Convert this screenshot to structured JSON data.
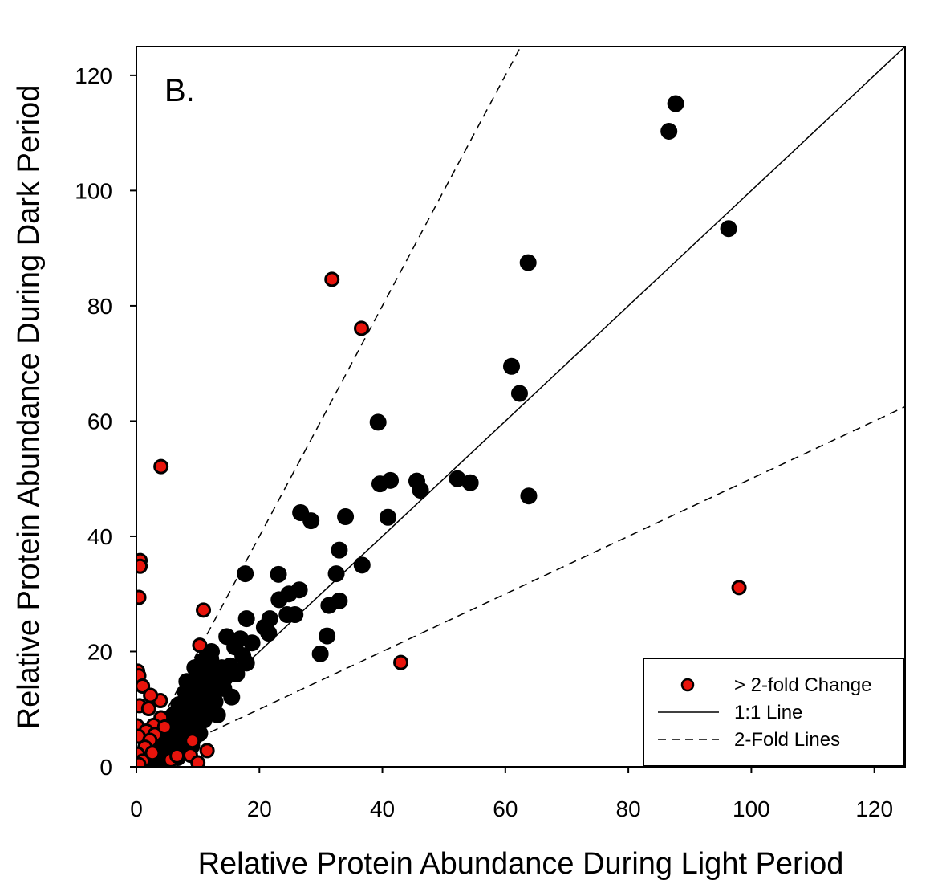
{
  "chart_data": {
    "type": "scatter",
    "panel_label": "B.",
    "xlabel": "Relative Protein Abundance During Light Period",
    "ylabel": "Relative Protein Abundance During Dark Period",
    "xlim": [
      0,
      125
    ],
    "ylim": [
      0,
      125
    ],
    "xticks": [
      0,
      20,
      40,
      60,
      80,
      100,
      120
    ],
    "yticks": [
      0,
      20,
      40,
      60,
      80,
      100,
      120
    ],
    "grid": false,
    "legend_position": "bottom-right",
    "colors": {
      "black_points": "#000000",
      "red_points": "#e8140c",
      "axes": "#000000"
    },
    "legend": {
      "points_label": "> 2-fold Change",
      "one_to_one_label": "1:1 Line",
      "two_fold_label": "2-Fold Lines"
    },
    "lines": [
      {
        "id": "one-to-one",
        "style": "solid",
        "slope": 1
      },
      {
        "id": "two-fold-upper",
        "style": "dashed",
        "slope": 2
      },
      {
        "id": "two-fold-lower",
        "style": "dashed",
        "slope": 0.5
      }
    ],
    "series": [
      {
        "id": "all-proteins",
        "color": "#000000",
        "points": [
          [
            87.7,
            115.1
          ],
          [
            86.6,
            110.3
          ],
          [
            96.3,
            93.4
          ],
          [
            63.7,
            87.5
          ],
          [
            61.0,
            69.5
          ],
          [
            62.3,
            64.8
          ],
          [
            39.3,
            59.8
          ],
          [
            39.6,
            49.1
          ],
          [
            41.3,
            49.7
          ],
          [
            45.6,
            49.6
          ],
          [
            46.2,
            48.0
          ],
          [
            52.2,
            50.0
          ],
          [
            54.3,
            49.3
          ],
          [
            40.9,
            43.3
          ],
          [
            63.8,
            47.0
          ],
          [
            26.7,
            44.1
          ],
          [
            28.4,
            42.7
          ],
          [
            34.0,
            43.4
          ],
          [
            33.0,
            37.6
          ],
          [
            36.7,
            35.0
          ],
          [
            32.5,
            33.5
          ],
          [
            23.1,
            33.4
          ],
          [
            17.7,
            33.5
          ],
          [
            26.5,
            30.7
          ],
          [
            24.8,
            30.0
          ],
          [
            23.2,
            29.0
          ],
          [
            33.0,
            28.8
          ],
          [
            31.3,
            28.0
          ],
          [
            24.5,
            26.4
          ],
          [
            25.8,
            26.4
          ],
          [
            21.7,
            25.7
          ],
          [
            17.9,
            25.7
          ],
          [
            20.8,
            24.2
          ],
          [
            21.5,
            23.2
          ],
          [
            14.7,
            22.6
          ],
          [
            16.9,
            22.2
          ],
          [
            16.0,
            20.8
          ],
          [
            18.8,
            21.5
          ],
          [
            17.3,
            19.3
          ],
          [
            31.0,
            22.7
          ],
          [
            29.9,
            19.6
          ],
          [
            15.5,
            12.1
          ],
          [
            17.9,
            18.0
          ],
          [
            13.9,
            17.2
          ],
          [
            12.1,
            18.7
          ],
          [
            11.5,
            19.3
          ],
          [
            12.4,
            16.5
          ],
          [
            13.2,
            14.4
          ],
          [
            11.0,
            15.6
          ],
          [
            10.2,
            13.9
          ],
          [
            9.6,
            15.2
          ],
          [
            8.2,
            14.8
          ],
          [
            9.5,
            17.2
          ],
          [
            10.5,
            17.8
          ],
          [
            11.3,
            13.1
          ],
          [
            12.5,
            12.3
          ],
          [
            14.2,
            13.6
          ],
          [
            12.8,
            11.3
          ],
          [
            11.0,
            11.0
          ],
          [
            10.2,
            11.8
          ],
          [
            9.5,
            12.6
          ],
          [
            8.7,
            12.1
          ],
          [
            8.0,
            11.0
          ],
          [
            7.3,
            10.4
          ],
          [
            9.3,
            10.0
          ],
          [
            10.4,
            9.3
          ],
          [
            11.6,
            9.5
          ],
          [
            12.5,
            10.0
          ],
          [
            13.2,
            9.0
          ],
          [
            9.6,
            8.3
          ],
          [
            8.6,
            8.6
          ],
          [
            7.6,
            9.0
          ],
          [
            6.8,
            8.1
          ],
          [
            7.7,
            7.5
          ],
          [
            8.8,
            7.0
          ],
          [
            10.0,
            7.6
          ],
          [
            11.0,
            8.1
          ],
          [
            9.4,
            6.5
          ],
          [
            7.9,
            6.2
          ],
          [
            6.8,
            6.7
          ],
          [
            6.0,
            7.3
          ],
          [
            5.3,
            6.4
          ],
          [
            6.3,
            5.7
          ],
          [
            7.3,
            5.2
          ],
          [
            8.4,
            5.3
          ],
          [
            9.4,
            5.0
          ],
          [
            10.3,
            5.8
          ],
          [
            8.6,
            4.4
          ],
          [
            7.2,
            4.3
          ],
          [
            5.8,
            4.7
          ],
          [
            5.0,
            5.6
          ],
          [
            4.4,
            4.9
          ],
          [
            5.4,
            3.9
          ],
          [
            6.5,
            3.6
          ],
          [
            7.9,
            3.4
          ],
          [
            9.0,
            3.6
          ],
          [
            4.0,
            3.9
          ],
          [
            4.7,
            3.0
          ],
          [
            5.9,
            2.8
          ],
          [
            7.1,
            2.5
          ],
          [
            3.5,
            3.0
          ],
          [
            3.1,
            2.3
          ],
          [
            4.2,
            2.0
          ],
          [
            5.4,
            1.9
          ],
          [
            6.7,
            1.6
          ],
          [
            2.6,
            1.8
          ],
          [
            2.0,
            2.4
          ],
          [
            1.9,
            1.3
          ],
          [
            3.0,
            1.2
          ],
          [
            4.3,
            1.1
          ],
          [
            1.3,
            1.8
          ],
          [
            1.1,
            0.9
          ],
          [
            2.2,
            0.7
          ],
          [
            3.6,
            0.6
          ],
          [
            0.8,
            1.3
          ],
          [
            0.5,
            0.5
          ],
          [
            1.5,
            0.3
          ],
          [
            0.3,
            0.8
          ],
          [
            0.6,
            2.1
          ],
          [
            2.4,
            3.3
          ],
          [
            1.6,
            2.9
          ],
          [
            3.8,
            5.5
          ],
          [
            2.8,
            4.3
          ],
          [
            4.9,
            7.0
          ],
          [
            6.0,
            9.0
          ],
          [
            6.9,
            10.8
          ],
          [
            8.0,
            12.9
          ],
          [
            8.5,
            14.0
          ],
          [
            11.9,
            14.9
          ],
          [
            13.0,
            15.8
          ],
          [
            15.3,
            17.5
          ],
          [
            16.3,
            16.1
          ],
          [
            14.4,
            15.4
          ],
          [
            12.2,
            20.0
          ],
          [
            10.8,
            18.4
          ]
        ]
      },
      {
        "id": "two-fold-change",
        "name": "> 2-fold Change",
        "color": "#e8140c",
        "points": [
          [
            31.8,
            84.6
          ],
          [
            36.6,
            76.1
          ],
          [
            4.0,
            52.1
          ],
          [
            0.6,
            35.8
          ],
          [
            0.6,
            34.8
          ],
          [
            0.4,
            29.4
          ],
          [
            10.9,
            27.2
          ],
          [
            10.3,
            21.1
          ],
          [
            43.0,
            18.1
          ],
          [
            98.0,
            31.1
          ],
          [
            0.2,
            16.6
          ],
          [
            0.4,
            15.8
          ],
          [
            1.0,
            14.0
          ],
          [
            3.9,
            11.5
          ],
          [
            2.3,
            12.4
          ],
          [
            0.5,
            10.6
          ],
          [
            2.0,
            10.1
          ],
          [
            4.0,
            8.5
          ],
          [
            2.8,
            7.2
          ],
          [
            0.1,
            7.1
          ],
          [
            1.6,
            6.2
          ],
          [
            3.0,
            5.6
          ],
          [
            0.3,
            5.3
          ],
          [
            2.2,
            4.6
          ],
          [
            1.4,
            3.4
          ],
          [
            0.2,
            2.2
          ],
          [
            5.6,
            1.2
          ],
          [
            6.6,
            1.9
          ],
          [
            8.8,
            2.0
          ],
          [
            11.5,
            2.8
          ],
          [
            10.0,
            0.7
          ],
          [
            9.1,
            4.5
          ],
          [
            1.0,
            1.0
          ],
          [
            0.4,
            0.4
          ],
          [
            2.6,
            2.4
          ],
          [
            4.6,
            6.9
          ]
        ]
      }
    ]
  }
}
